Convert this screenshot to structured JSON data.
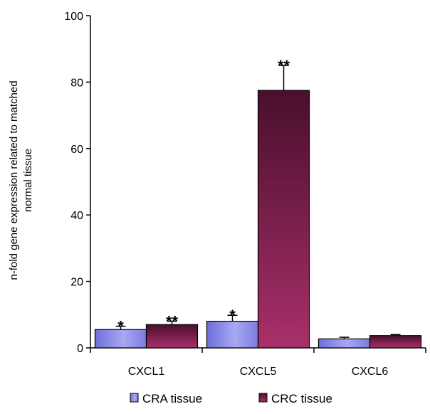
{
  "chart_data": {
    "type": "bar",
    "title": "",
    "xlabel": "",
    "ylabel_lines": [
      "n-fold gene expression related to matched",
      "normal tissue"
    ],
    "ylim": [
      0,
      100
    ],
    "yticks": [
      0,
      20,
      40,
      60,
      80,
      100
    ],
    "grid": false,
    "legend_position": "bottom",
    "categories": [
      "CXCL1",
      "CXCL5",
      "CXCL6"
    ],
    "series": [
      {
        "name": "CRA tissue",
        "color": "#8f8fe8",
        "values": [
          5.5,
          8,
          2.7
        ],
        "errors": [
          1.0,
          1.8,
          0.5
        ],
        "significance": [
          "*",
          "*",
          ""
        ]
      },
      {
        "name": "CRC tissue",
        "color": "#8a2050",
        "values": [
          7,
          77.5,
          3.7
        ],
        "errors": [
          1.0,
          7.5,
          0.3
        ],
        "significance": [
          "**",
          "**",
          ""
        ]
      }
    ]
  }
}
